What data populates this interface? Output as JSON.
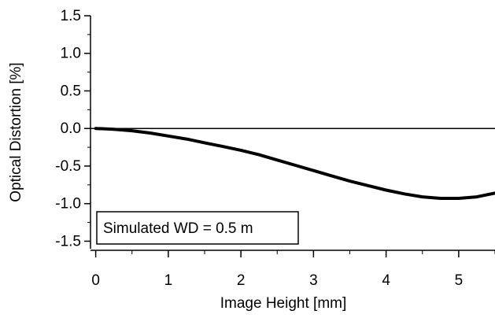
{
  "chart_data": {
    "type": "line",
    "title": "",
    "xlabel": "Image Height [mm]",
    "ylabel": "Optical Distortion [%]",
    "xlim": [
      -0.05,
      5.5
    ],
    "ylim": [
      -1.6,
      1.5
    ],
    "x_ticks": [
      0,
      1,
      2,
      3,
      4,
      5
    ],
    "x_tick_labels": [
      "0",
      "1",
      "2",
      "3",
      "4",
      "5"
    ],
    "y_ticks": [
      1.5,
      1.0,
      0.5,
      0.0,
      -0.5,
      -1.0,
      -1.5
    ],
    "y_tick_labels": [
      "1.5",
      "1.0",
      "0.5",
      "0.0",
      "-0.5",
      "-1.0",
      "-1.5"
    ],
    "grid": false,
    "reference_line_y": 0,
    "annotation": "Simulated WD = 0.5 m",
    "series": [
      {
        "color": "#000000",
        "x": [
          0,
          0.25,
          0.5,
          0.75,
          1.0,
          1.25,
          1.5,
          1.75,
          2.0,
          2.25,
          2.5,
          2.75,
          3.0,
          3.25,
          3.5,
          3.75,
          4.0,
          4.25,
          4.5,
          4.75,
          5.0,
          5.25,
          5.5
        ],
        "values": [
          0.0,
          -0.01,
          -0.03,
          -0.06,
          -0.1,
          -0.14,
          -0.19,
          -0.24,
          -0.29,
          -0.35,
          -0.42,
          -0.49,
          -0.56,
          -0.63,
          -0.7,
          -0.76,
          -0.82,
          -0.87,
          -0.91,
          -0.93,
          -0.93,
          -0.91,
          -0.86
        ]
      }
    ]
  }
}
